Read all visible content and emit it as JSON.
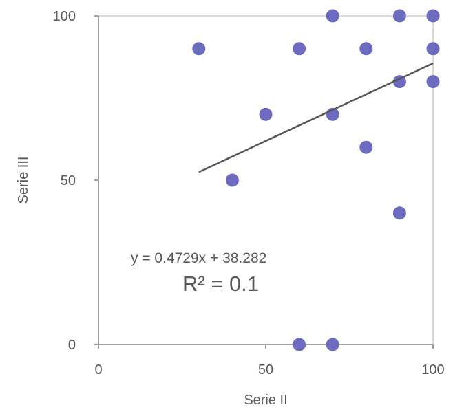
{
  "chart_data": {
    "type": "scatter",
    "xlabel": "Serie II",
    "ylabel": "Serie III",
    "xlim": [
      0,
      100
    ],
    "ylim": [
      0,
      100
    ],
    "x_ticks": [
      "0",
      "50",
      "100"
    ],
    "y_ticks": [
      "0",
      "50",
      "100"
    ],
    "grid": false,
    "points": [
      {
        "x": 30,
        "y": 90
      },
      {
        "x": 40,
        "y": 50
      },
      {
        "x": 50,
        "y": 70
      },
      {
        "x": 60,
        "y": 90
      },
      {
        "x": 60,
        "y": 0
      },
      {
        "x": 70,
        "y": 100
      },
      {
        "x": 70,
        "y": 70
      },
      {
        "x": 70,
        "y": 0
      },
      {
        "x": 80,
        "y": 90
      },
      {
        "x": 80,
        "y": 60
      },
      {
        "x": 90,
        "y": 100
      },
      {
        "x": 90,
        "y": 80
      },
      {
        "x": 90,
        "y": 40
      },
      {
        "x": 100,
        "y": 100
      },
      {
        "x": 100,
        "y": 90
      },
      {
        "x": 100,
        "y": 80
      }
    ],
    "trendline": {
      "type": "linear",
      "slope": 0.4729,
      "intercept": 38.282,
      "x_range": [
        30,
        100
      ],
      "equation": "y = 0.4729x + 38.282",
      "r_squared": "R² = 0.1"
    },
    "colors": {
      "marker": "#6B6BC0",
      "trendline": "#555555",
      "axis": "#7f7f7f",
      "text": "#595959"
    }
  }
}
